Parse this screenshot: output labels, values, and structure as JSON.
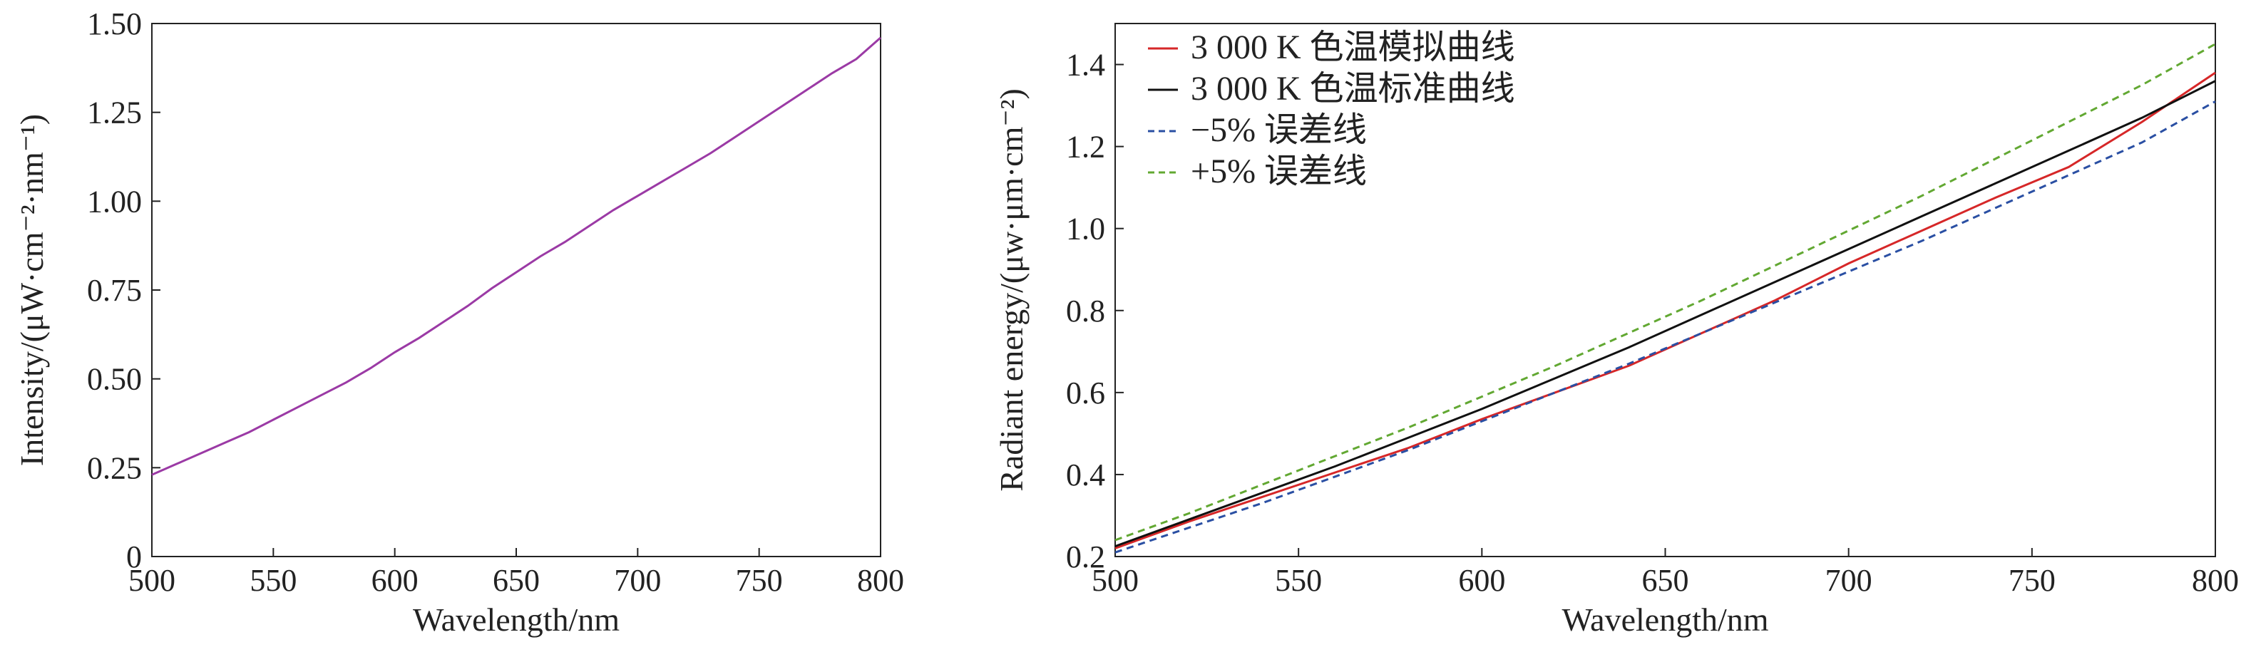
{
  "chart_data": [
    {
      "type": "line",
      "xlabel": "Wavelength/nm",
      "ylabel": "Intensity/(μW·cm⁻²·nm⁻¹)",
      "xlim": [
        500,
        800
      ],
      "ylim": [
        0,
        1.5
      ],
      "xticks": [
        "500",
        "550",
        "600",
        "650",
        "700",
        "750",
        "800"
      ],
      "yticks": [
        "0",
        "0.25",
        "0.50",
        "0.75",
        "1.00",
        "1.25",
        "1.50"
      ],
      "grid": false,
      "series": [
        {
          "color": "#9b3aa5",
          "x": [
            500,
            510,
            520,
            530,
            540,
            550,
            560,
            570,
            580,
            590,
            600,
            610,
            620,
            630,
            640,
            650,
            660,
            670,
            680,
            690,
            700,
            710,
            720,
            730,
            740,
            750,
            760,
            770,
            780,
            790,
            800
          ],
          "y": [
            0.23,
            0.26,
            0.29,
            0.32,
            0.35,
            0.385,
            0.42,
            0.455,
            0.49,
            0.53,
            0.575,
            0.615,
            0.66,
            0.705,
            0.755,
            0.8,
            0.845,
            0.885,
            0.93,
            0.975,
            1.015,
            1.055,
            1.095,
            1.135,
            1.18,
            1.225,
            1.27,
            1.315,
            1.36,
            1.4,
            1.46
          ]
        }
      ]
    },
    {
      "type": "line",
      "xlabel": "Wavelength/nm",
      "ylabel": "Radiant energy/(μw·μm·cm⁻²)",
      "xlim": [
        500,
        800
      ],
      "ylim": [
        0.2,
        1.5
      ],
      "xticks": [
        "500",
        "550",
        "600",
        "650",
        "700",
        "750",
        "800"
      ],
      "yticks": [
        "0.2",
        "0.4",
        "0.6",
        "0.8",
        "1.0",
        "1.2",
        "1.4"
      ],
      "grid": false,
      "legend_position": "top-left",
      "x": [
        500,
        520,
        540,
        560,
        580,
        600,
        620,
        640,
        660,
        680,
        700,
        720,
        740,
        760,
        780,
        800
      ],
      "series": [
        {
          "name": "3 000 K 色温模拟曲线",
          "color": "#d62728",
          "dash": "solid",
          "y": [
            0.22,
            0.285,
            0.345,
            0.405,
            0.465,
            0.535,
            0.6,
            0.665,
            0.745,
            0.825,
            0.915,
            0.995,
            1.075,
            1.15,
            1.26,
            1.38
          ]
        },
        {
          "name": "3 000 K 色温标准曲线",
          "color": "#111111",
          "dash": "solid",
          "y": [
            0.225,
            0.29,
            0.355,
            0.42,
            0.49,
            0.56,
            0.635,
            0.71,
            0.79,
            0.87,
            0.95,
            1.03,
            1.11,
            1.19,
            1.27,
            1.36
          ]
        },
        {
          "name": "−5% 误差线",
          "color": "#2a4fa3",
          "dash": "dashed",
          "y": [
            0.21,
            0.27,
            0.33,
            0.395,
            0.46,
            0.53,
            0.6,
            0.67,
            0.745,
            0.82,
            0.895,
            0.97,
            1.05,
            1.13,
            1.21,
            1.31
          ]
        },
        {
          "name": "+5% 误差线",
          "color": "#62a832",
          "dash": "dashed",
          "y": [
            0.24,
            0.305,
            0.375,
            0.445,
            0.515,
            0.59,
            0.665,
            0.745,
            0.825,
            0.91,
            0.995,
            1.08,
            1.17,
            1.26,
            1.35,
            1.45
          ]
        }
      ]
    }
  ]
}
